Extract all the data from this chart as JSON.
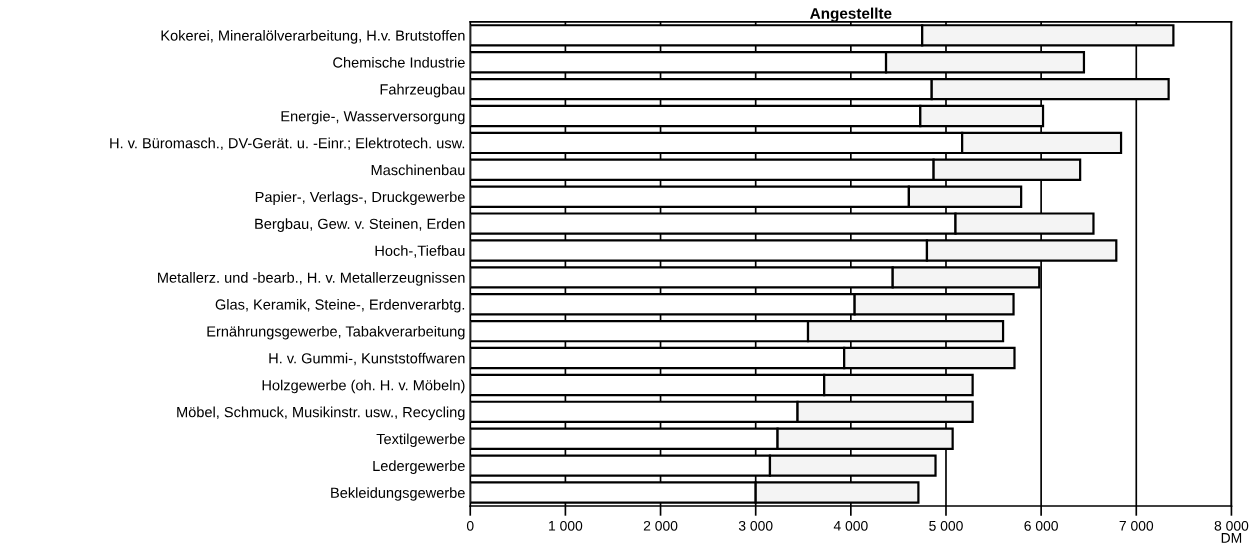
{
  "chart_data": {
    "type": "bar",
    "orientation": "horizontal",
    "stacked": true,
    "title": "Angestellte",
    "xlabel": "DM",
    "categories": [
      "Kokerei, Mineralölverarbeitung, H.v. Brutstoffen",
      "Chemische Industrie",
      "Fahrzeugbau",
      "Energie-, Wasserversorgung",
      "H. v. Büromasch., DV-Gerät. u. -Einr.; Elektrotech. usw.",
      "Maschinenbau",
      "Papier-, Verlags-, Druckgewerbe",
      "Bergbau, Gew. v. Steinen, Erden",
      "Hoch-,Tiefbau",
      "Metallerz. und -bearb., H. v. Metallerzeugnissen",
      "Glas, Keramik, Steine-, Erdenverarbtg.",
      "Ernährungsgewerbe, Tabakverarbeitung",
      "H. v. Gummi-, Kunststoffwaren",
      "Holzgewerbe (oh. H. v. Möbeln)",
      "Möbel, Schmuck, Musikinstr. usw., Recycling",
      "Textilgewerbe",
      "Ledergewerbe",
      "Bekleidungsgewerbe"
    ],
    "series": [
      {
        "color": "#ffffff",
        "values": [
          4750,
          4370,
          4850,
          4730,
          5170,
          4870,
          4610,
          5100,
          4800,
          4440,
          4040,
          3550,
          3930,
          3720,
          3440,
          3230,
          3150,
          3000
        ]
      },
      {
        "color": "#f4f4f4",
        "values": [
          2640,
          2080,
          2490,
          1290,
          1670,
          1540,
          1180,
          1450,
          1990,
          1540,
          1670,
          2050,
          1790,
          1560,
          1840,
          1840,
          1740,
          1710
        ]
      }
    ],
    "xlim": [
      0,
      8000
    ],
    "xticks": [
      0,
      {
        "value": 1000,
        "label": "1 000"
      },
      {
        "value": 2000,
        "label": "2 000"
      },
      {
        "value": 3000,
        "label": "3 000"
      },
      {
        "value": 4000,
        "label": "4 000"
      },
      {
        "value": 5000,
        "label": "5 000"
      },
      {
        "value": 6000,
        "label": "6 000"
      },
      {
        "value": 7000,
        "label": "7 000"
      },
      {
        "value": 8000,
        "label": "8 000"
      }
    ],
    "grid": "x",
    "legend": false
  }
}
